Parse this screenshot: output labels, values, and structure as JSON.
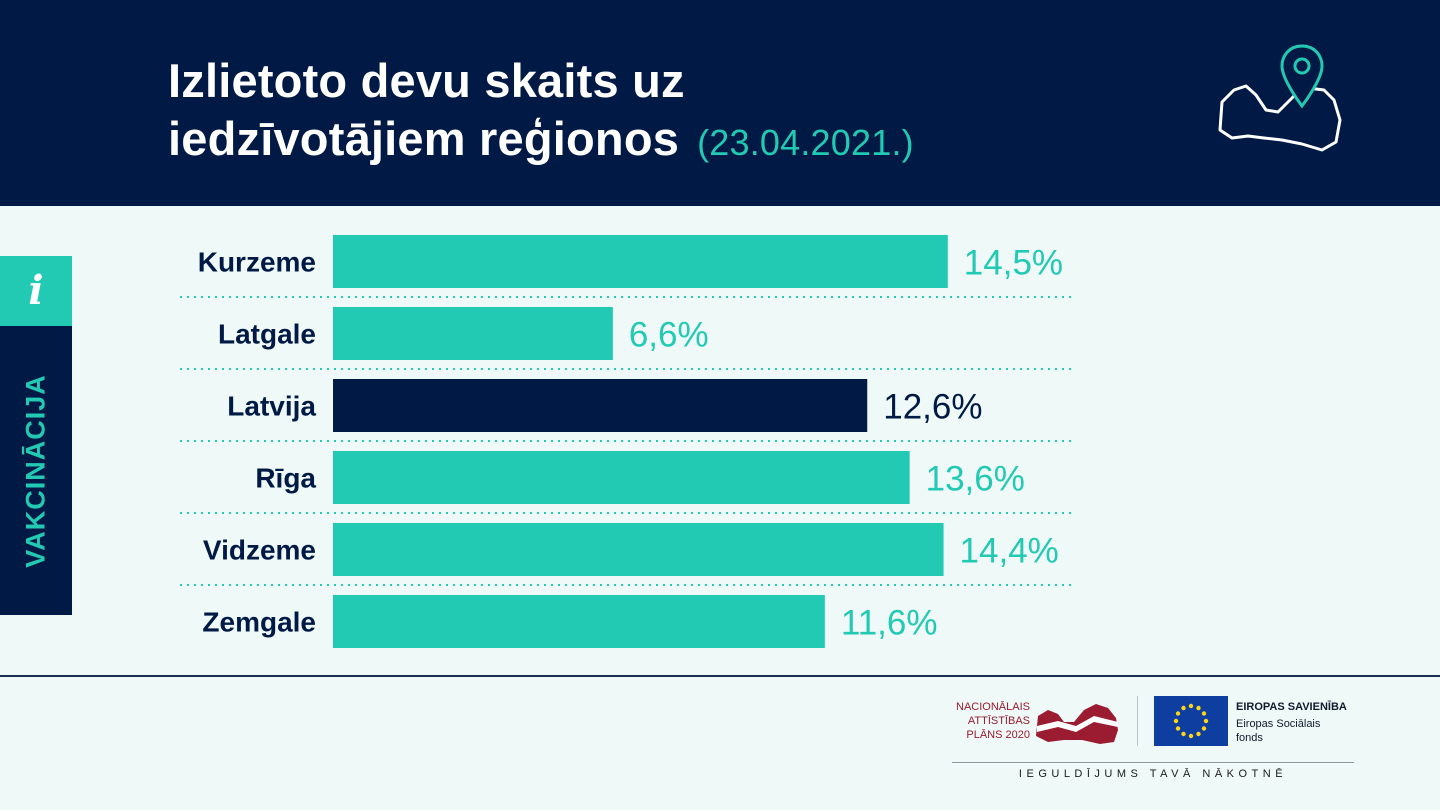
{
  "header": {
    "title_line1": "Izlietoto devu skaits uz",
    "title_line2": "iedzīvotājiem reģionos",
    "date": "(23.04.2021.)"
  },
  "side_tab": {
    "info_glyph": "i",
    "label": "VAKCINĀCIJA"
  },
  "chart_data": {
    "type": "bar",
    "orientation": "horizontal",
    "categories": [
      "Kurzeme",
      "Latgale",
      "Latvija",
      "Rīga",
      "Vidzeme",
      "Zemgale"
    ],
    "values": [
      14.5,
      6.6,
      12.6,
      13.6,
      14.4,
      11.6
    ],
    "value_labels": [
      "14,5%",
      "6,6%",
      "12,6%",
      "13,6%",
      "14,4%",
      "11,6%"
    ],
    "highlight_category": "Latvija",
    "unit": "%",
    "xlim": [
      0,
      18
    ],
    "colors": {
      "bar": "#22c9b3",
      "highlight": "#001a45"
    },
    "title": "",
    "xlabel": "",
    "ylabel": ""
  },
  "footer": {
    "nap_text": [
      "NACIONĀLAIS",
      "ATTĪSTĪBAS",
      "PLĀNS 2020"
    ],
    "eu_title": "EIROPAS SAVIENĪBA",
    "eu_sub": [
      "Eiropas Sociālais",
      "fonds"
    ],
    "slogan": "IEGULDĪJUMS TAVĀ NĀKOTNĒ"
  },
  "colors": {
    "navy": "#001a45",
    "teal": "#22c9b3",
    "background": "#eef9f8"
  }
}
